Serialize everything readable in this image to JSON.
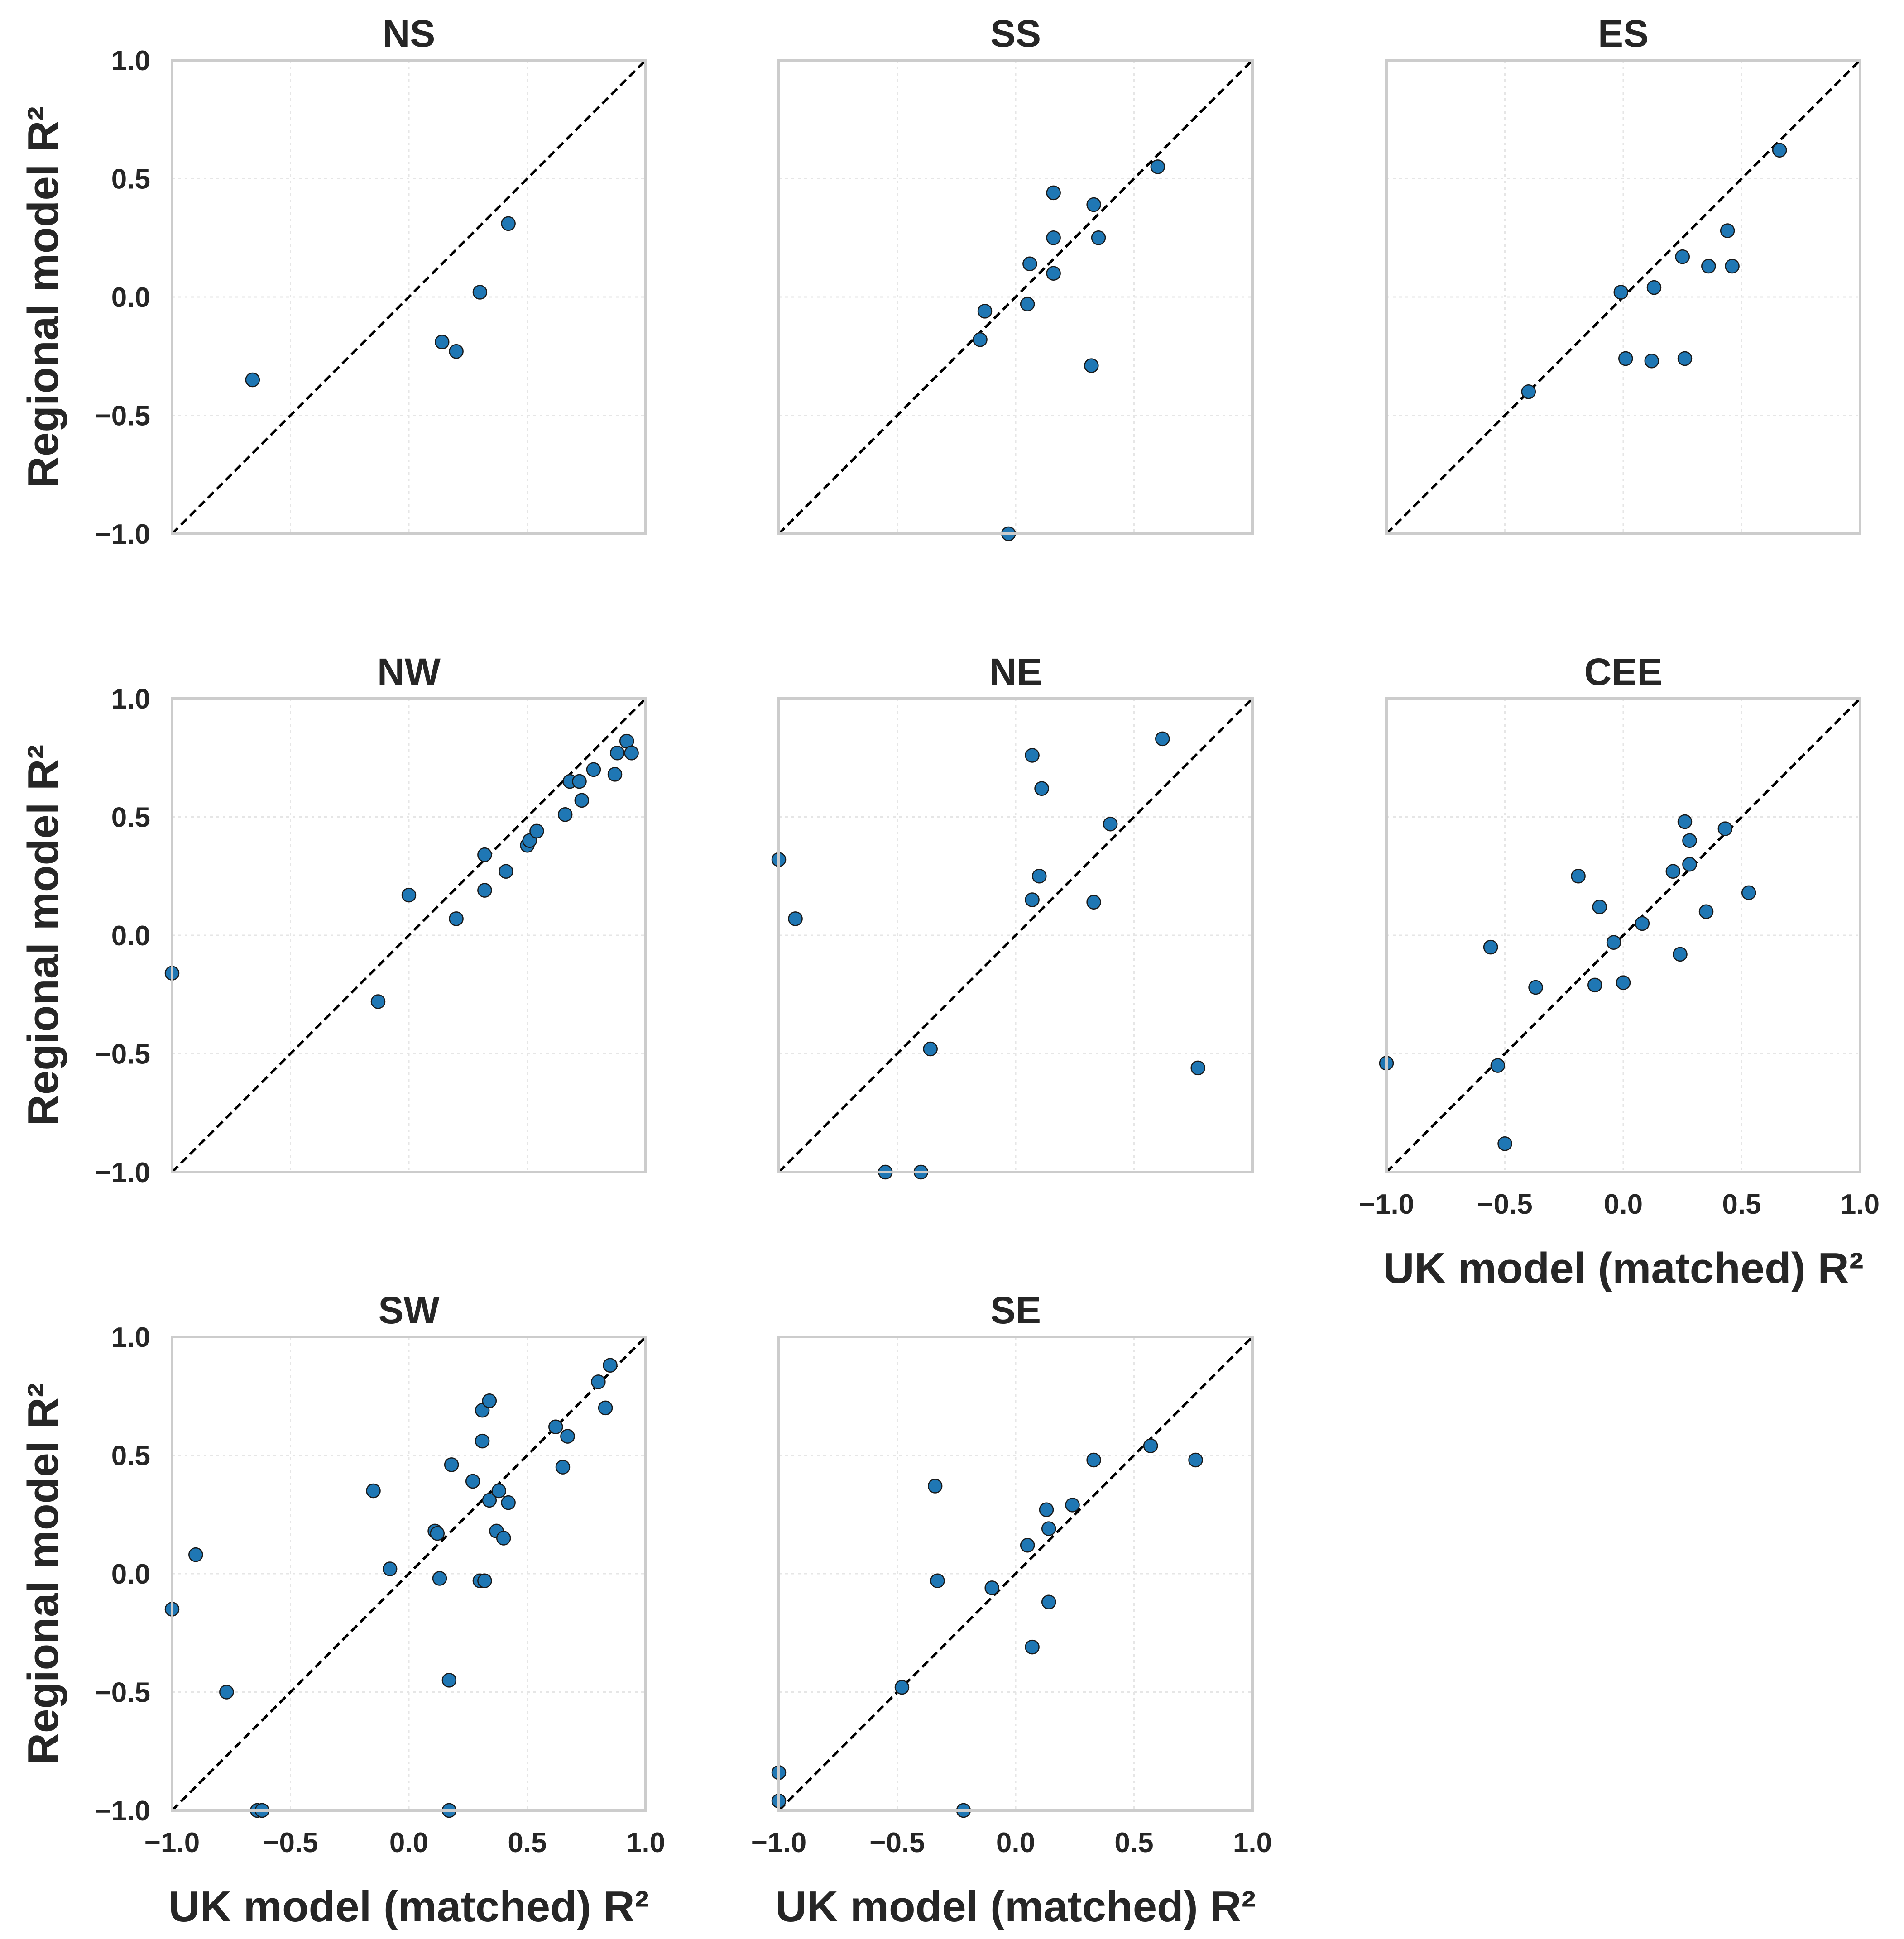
{
  "colors": {
    "points": "#1f77b4",
    "frame": "#cccccc",
    "diagonal": "#000000"
  },
  "chart_data": [
    {
      "type": "scatter",
      "title": "NS",
      "xlabel": "",
      "ylabel": "Regional model R²",
      "xlim": [
        -1,
        1
      ],
      "ylim": [
        -1,
        1
      ],
      "grid": true,
      "xticks": [],
      "yticks": [
        "1.0",
        "0.5",
        "0.0",
        "−0.5",
        "−1.0"
      ],
      "reference_line": "y = x",
      "points": [
        [
          -0.66,
          -0.35
        ],
        [
          0.14,
          -0.19
        ],
        [
          0.2,
          -0.23
        ],
        [
          0.3,
          0.02
        ],
        [
          0.42,
          0.31
        ]
      ]
    },
    {
      "type": "scatter",
      "title": "SS",
      "xlabel": "",
      "ylabel": "",
      "xlim": [
        -1,
        1
      ],
      "ylim": [
        -1,
        1
      ],
      "grid": true,
      "xticks": [],
      "yticks": [],
      "reference_line": "y = x",
      "points": [
        [
          -0.15,
          -0.18
        ],
        [
          -0.13,
          -0.06
        ],
        [
          0.05,
          -0.03
        ],
        [
          0.06,
          0.14
        ],
        [
          0.16,
          0.25
        ],
        [
          0.16,
          0.44
        ],
        [
          0.16,
          0.1
        ],
        [
          0.32,
          -0.29
        ],
        [
          0.33,
          0.39
        ],
        [
          0.35,
          0.25
        ],
        [
          0.6,
          0.55
        ],
        [
          -0.03,
          -1.0
        ]
      ]
    },
    {
      "type": "scatter",
      "title": "ES",
      "xlabel": "",
      "ylabel": "",
      "xlim": [
        -1,
        1
      ],
      "ylim": [
        -1,
        1
      ],
      "grid": true,
      "xticks": [],
      "yticks": [],
      "reference_line": "y = x",
      "points": [
        [
          -0.4,
          -0.4
        ],
        [
          -0.01,
          0.02
        ],
        [
          0.01,
          -0.26
        ],
        [
          0.12,
          -0.27
        ],
        [
          0.13,
          0.04
        ],
        [
          0.25,
          0.17
        ],
        [
          0.26,
          -0.26
        ],
        [
          0.36,
          0.13
        ],
        [
          0.44,
          0.28
        ],
        [
          0.46,
          0.13
        ],
        [
          0.66,
          0.62
        ]
      ]
    },
    {
      "type": "scatter",
      "title": "NW",
      "xlabel": "",
      "ylabel": "Regional model R²",
      "xlim": [
        -1,
        1
      ],
      "ylim": [
        -1,
        1
      ],
      "grid": true,
      "xticks": [],
      "yticks": [
        "1.0",
        "0.5",
        "0.0",
        "−0.5",
        "−1.0"
      ],
      "reference_line": "y = x",
      "points": [
        [
          -1.0,
          -0.16
        ],
        [
          -0.13,
          -0.28
        ],
        [
          0.0,
          0.17
        ],
        [
          0.2,
          0.07
        ],
        [
          0.32,
          0.34
        ],
        [
          0.32,
          0.19
        ],
        [
          0.41,
          0.27
        ],
        [
          0.5,
          0.38
        ],
        [
          0.51,
          0.4
        ],
        [
          0.54,
          0.44
        ],
        [
          0.66,
          0.51
        ],
        [
          0.68,
          0.65
        ],
        [
          0.72,
          0.65
        ],
        [
          0.73,
          0.57
        ],
        [
          0.78,
          0.7
        ],
        [
          0.87,
          0.68
        ],
        [
          0.88,
          0.77
        ],
        [
          0.92,
          0.82
        ],
        [
          0.94,
          0.77
        ]
      ]
    },
    {
      "type": "scatter",
      "title": "NE",
      "xlabel": "",
      "ylabel": "",
      "xlim": [
        -1,
        1
      ],
      "ylim": [
        -1,
        1
      ],
      "grid": true,
      "xticks": [],
      "yticks": [],
      "reference_line": "y = x",
      "points": [
        [
          -1.0,
          0.32
        ],
        [
          -0.93,
          0.07
        ],
        [
          -0.36,
          -0.48
        ],
        [
          -0.55,
          -1.0
        ],
        [
          -0.4,
          -1.0
        ],
        [
          0.07,
          0.76
        ],
        [
          0.11,
          0.62
        ],
        [
          0.1,
          0.25
        ],
        [
          0.07,
          0.15
        ],
        [
          0.33,
          0.14
        ],
        [
          0.4,
          0.47
        ],
        [
          0.62,
          0.83
        ],
        [
          0.77,
          -0.56
        ]
      ]
    },
    {
      "type": "scatter",
      "title": "CEE",
      "xlabel": "UK model (matched) R²",
      "ylabel": "",
      "xlim": [
        -1,
        1
      ],
      "ylim": [
        -1,
        1
      ],
      "grid": true,
      "xticks": [
        "−1.0",
        "−0.5",
        "0.0",
        "0.5",
        "1.0"
      ],
      "yticks": [],
      "reference_line": "y = x",
      "points": [
        [
          -1.0,
          -0.54
        ],
        [
          -0.56,
          -0.05
        ],
        [
          -0.53,
          -0.55
        ],
        [
          -0.5,
          -0.88
        ],
        [
          -0.37,
          -0.22
        ],
        [
          -0.19,
          0.25
        ],
        [
          -0.12,
          -0.21
        ],
        [
          -0.1,
          0.12
        ],
        [
          -0.04,
          -0.03
        ],
        [
          0.0,
          -0.2
        ],
        [
          0.08,
          0.05
        ],
        [
          0.21,
          0.27
        ],
        [
          0.24,
          -0.08
        ],
        [
          0.26,
          0.48
        ],
        [
          0.28,
          0.4
        ],
        [
          0.28,
          0.3
        ],
        [
          0.35,
          0.1
        ],
        [
          0.43,
          0.45
        ],
        [
          0.53,
          0.18
        ]
      ]
    },
    {
      "type": "scatter",
      "title": "SW",
      "xlabel": "UK model (matched) R²",
      "ylabel": "Regional model R²",
      "xlim": [
        -1,
        1
      ],
      "ylim": [
        -1,
        1
      ],
      "grid": true,
      "xticks": [
        "−1.0",
        "−0.5",
        "0.0",
        "0.5",
        "1.0"
      ],
      "yticks": [
        "1.0",
        "0.5",
        "0.0",
        "−0.5",
        "−1.0"
      ],
      "reference_line": "y = x",
      "points": [
        [
          -1.0,
          -0.15
        ],
        [
          -0.9,
          0.08
        ],
        [
          -0.77,
          -0.5
        ],
        [
          -0.64,
          -1.0
        ],
        [
          -0.62,
          -1.0
        ],
        [
          -0.15,
          0.35
        ],
        [
          -0.08,
          0.02
        ],
        [
          0.17,
          -1.0
        ],
        [
          0.11,
          0.18
        ],
        [
          0.12,
          0.17
        ],
        [
          0.13,
          -0.02
        ],
        [
          0.18,
          0.46
        ],
        [
          0.17,
          -0.45
        ],
        [
          0.27,
          0.39
        ],
        [
          0.3,
          -0.03
        ],
        [
          0.32,
          -0.03
        ],
        [
          0.31,
          0.56
        ],
        [
          0.31,
          0.69
        ],
        [
          0.34,
          0.73
        ],
        [
          0.34,
          0.31
        ],
        [
          0.37,
          0.18
        ],
        [
          0.38,
          0.35
        ],
        [
          0.4,
          0.15
        ],
        [
          0.42,
          0.3
        ],
        [
          0.62,
          0.62
        ],
        [
          0.65,
          0.45
        ],
        [
          0.67,
          0.58
        ],
        [
          0.8,
          0.81
        ],
        [
          0.83,
          0.7
        ],
        [
          0.85,
          0.88
        ]
      ]
    },
    {
      "type": "scatter",
      "title": "SE",
      "xlabel": "UK model (matched) R²",
      "ylabel": "",
      "xlim": [
        -1,
        1
      ],
      "ylim": [
        -1,
        1
      ],
      "grid": true,
      "xticks": [
        "−1.0",
        "−0.5",
        "0.0",
        "0.5",
        "1.0"
      ],
      "yticks": [],
      "reference_line": "y = x",
      "points": [
        [
          -1.0,
          -0.84
        ],
        [
          -1.0,
          -0.96
        ],
        [
          -0.48,
          -0.48
        ],
        [
          -0.34,
          0.37
        ],
        [
          -0.33,
          -0.03
        ],
        [
          -0.22,
          -1.0
        ],
        [
          -0.1,
          -0.06
        ],
        [
          0.05,
          0.12
        ],
        [
          0.07,
          -0.31
        ],
        [
          0.13,
          0.27
        ],
        [
          0.14,
          0.19
        ],
        [
          0.14,
          -0.12
        ],
        [
          0.24,
          0.29
        ],
        [
          0.33,
          0.48
        ],
        [
          0.57,
          0.54
        ],
        [
          0.76,
          0.48
        ]
      ]
    }
  ]
}
